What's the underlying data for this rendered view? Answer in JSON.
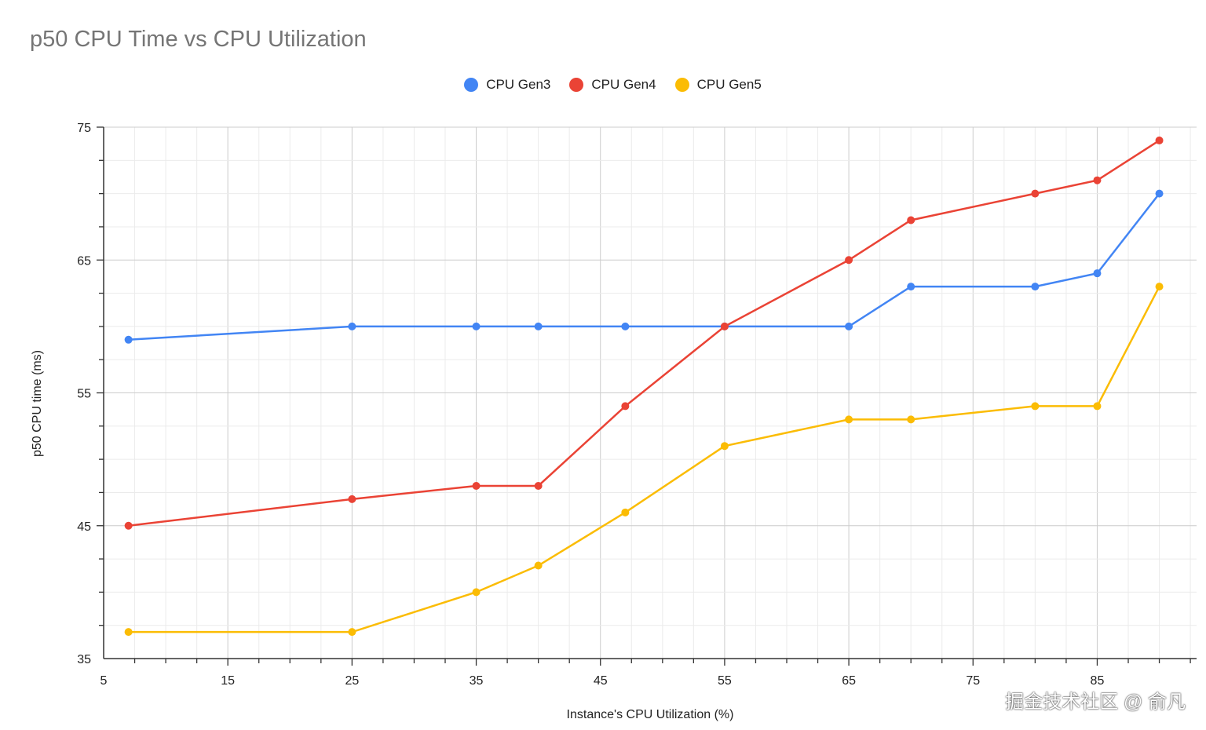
{
  "chart_data": {
    "type": "line",
    "title": "p50 CPU Time vs CPU Utilization",
    "xlabel": "Instance's CPU Utilization (%)",
    "ylabel": "p50 CPU time (ms)",
    "xlim": [
      5,
      93
    ],
    "ylim": [
      35,
      75
    ],
    "x_ticks": [
      5,
      15,
      25,
      35,
      45,
      55,
      65,
      75,
      85
    ],
    "y_ticks": [
      35,
      45,
      55,
      65,
      75
    ],
    "grid": true,
    "legend": "top",
    "x": [
      7,
      25,
      35,
      40,
      47,
      55,
      65,
      70,
      80,
      85,
      90
    ],
    "series": [
      {
        "name": "CPU Gen3",
        "color": "#4285F4",
        "values": [
          59,
          60,
          60,
          60,
          60,
          60,
          60,
          63,
          63,
          64,
          70
        ]
      },
      {
        "name": "CPU Gen4",
        "color": "#EA4335",
        "values": [
          45,
          47,
          48,
          48,
          54,
          60,
          65,
          68,
          70,
          71,
          74
        ]
      },
      {
        "name": "CPU Gen5",
        "color": "#FBBC04",
        "values": [
          37,
          37,
          40,
          42,
          46,
          51,
          53,
          53,
          54,
          54,
          63
        ]
      }
    ]
  },
  "watermark": "掘金技术社区 @ 俞凡"
}
